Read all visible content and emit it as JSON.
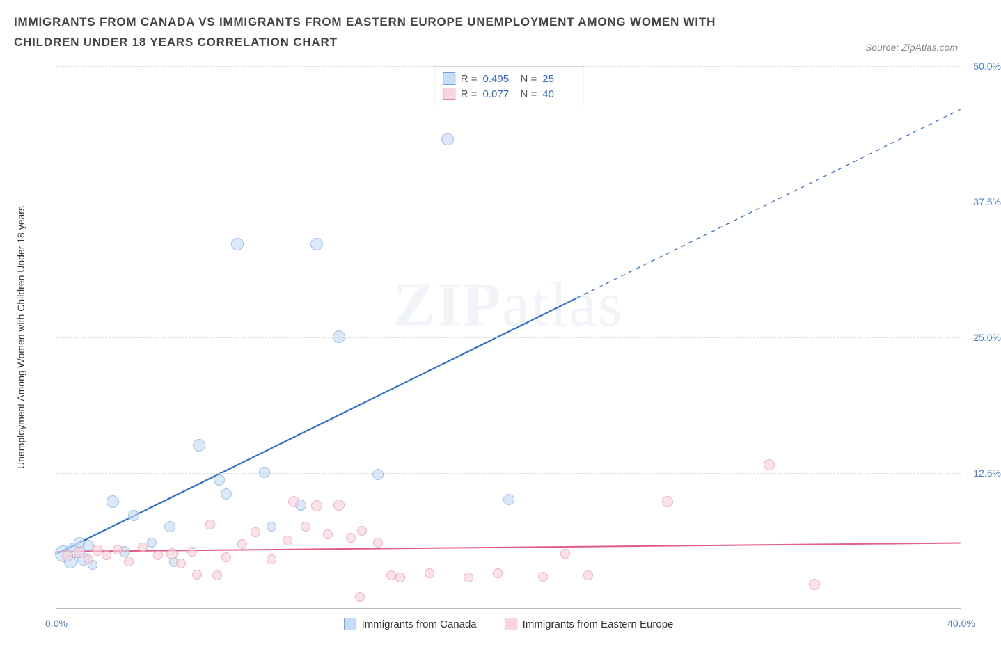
{
  "title": "IMMIGRANTS FROM CANADA VS IMMIGRANTS FROM EASTERN EUROPE UNEMPLOYMENT AMONG WOMEN WITH CHILDREN UNDER 18 YEARS CORRELATION CHART",
  "source_label": "Source: ZipAtlas.com",
  "watermark": {
    "bold": "ZIP",
    "light": "atlas"
  },
  "ylabel": "Unemployment Among Women with Children Under 18 years",
  "chart": {
    "type": "scatter",
    "xlim": [
      0,
      40
    ],
    "ylim": [
      0,
      50
    ],
    "xticks": [
      {
        "v": 0,
        "l": "0.0%"
      },
      {
        "v": 40,
        "l": "40.0%"
      }
    ],
    "yticks": [
      {
        "v": 12.5,
        "l": "12.5%"
      },
      {
        "v": 25,
        "l": "25.0%"
      },
      {
        "v": 37.5,
        "l": "37.5%"
      },
      {
        "v": 50,
        "l": "50.0%"
      }
    ],
    "grid_color": "#dddddd",
    "background_color": "#ffffff",
    "series": [
      {
        "name": "Immigrants from Canada",
        "fill": "#c7ddf5",
        "stroke": "#6ea0e0",
        "opacity": 0.65,
        "r_value": "0.495",
        "n_value": "25",
        "trend": {
          "x1": 0,
          "y1": 5,
          "x2": 40,
          "y2": 46,
          "solid_until_x": 23,
          "color": "#2f6fd0",
          "width": 2.2
        },
        "points": [
          {
            "x": 0.3,
            "y": 5.0,
            "r": 12
          },
          {
            "x": 0.6,
            "y": 4.2,
            "r": 9
          },
          {
            "x": 0.8,
            "y": 5.3,
            "r": 11
          },
          {
            "x": 1.0,
            "y": 6.0,
            "r": 8
          },
          {
            "x": 1.2,
            "y": 4.5,
            "r": 9
          },
          {
            "x": 1.4,
            "y": 5.8,
            "r": 8
          },
          {
            "x": 1.6,
            "y": 4.0,
            "r": 7
          },
          {
            "x": 2.5,
            "y": 9.8,
            "r": 9
          },
          {
            "x": 3.0,
            "y": 5.2,
            "r": 8
          },
          {
            "x": 3.4,
            "y": 8.5,
            "r": 8
          },
          {
            "x": 4.2,
            "y": 6.0,
            "r": 7
          },
          {
            "x": 5.0,
            "y": 7.5,
            "r": 8
          },
          {
            "x": 5.2,
            "y": 4.2,
            "r": 7
          },
          {
            "x": 6.3,
            "y": 15.0,
            "r": 9
          },
          {
            "x": 7.2,
            "y": 11.8,
            "r": 8
          },
          {
            "x": 7.5,
            "y": 10.5,
            "r": 8
          },
          {
            "x": 8.0,
            "y": 33.5,
            "r": 9
          },
          {
            "x": 9.2,
            "y": 12.5,
            "r": 8
          },
          {
            "x": 9.5,
            "y": 7.5,
            "r": 7
          },
          {
            "x": 10.8,
            "y": 9.5,
            "r": 8
          },
          {
            "x": 11.5,
            "y": 33.5,
            "r": 9
          },
          {
            "x": 12.5,
            "y": 25.0,
            "r": 9
          },
          {
            "x": 14.2,
            "y": 12.3,
            "r": 8
          },
          {
            "x": 17.3,
            "y": 43.2,
            "r": 9
          },
          {
            "x": 20.0,
            "y": 10.0,
            "r": 8
          }
        ]
      },
      {
        "name": "Immigrants from Eastern Europe",
        "fill": "#f8d4dc",
        "stroke": "#e889a4",
        "opacity": 0.65,
        "r_value": "0.077",
        "n_value": "40",
        "trend": {
          "x1": 0,
          "y1": 5.2,
          "x2": 40,
          "y2": 6.0,
          "solid_until_x": 40,
          "color": "#e05a8a",
          "width": 2
        },
        "points": [
          {
            "x": 0.5,
            "y": 4.8,
            "r": 8
          },
          {
            "x": 1.0,
            "y": 5.1,
            "r": 8
          },
          {
            "x": 1.4,
            "y": 4.5,
            "r": 7
          },
          {
            "x": 1.8,
            "y": 5.3,
            "r": 8
          },
          {
            "x": 2.2,
            "y": 4.9,
            "r": 7
          },
          {
            "x": 2.7,
            "y": 5.4,
            "r": 7
          },
          {
            "x": 3.2,
            "y": 4.3,
            "r": 7
          },
          {
            "x": 3.8,
            "y": 5.6,
            "r": 7
          },
          {
            "x": 4.5,
            "y": 4.9,
            "r": 7
          },
          {
            "x": 5.1,
            "y": 5.0,
            "r": 8
          },
          {
            "x": 5.5,
            "y": 4.1,
            "r": 7
          },
          {
            "x": 6.0,
            "y": 5.2,
            "r": 7
          },
          {
            "x": 6.2,
            "y": 3.1,
            "r": 7
          },
          {
            "x": 6.8,
            "y": 7.7,
            "r": 7
          },
          {
            "x": 7.1,
            "y": 3.0,
            "r": 7
          },
          {
            "x": 7.5,
            "y": 4.7,
            "r": 7
          },
          {
            "x": 8.2,
            "y": 5.9,
            "r": 7
          },
          {
            "x": 8.8,
            "y": 7.0,
            "r": 7
          },
          {
            "x": 9.5,
            "y": 4.5,
            "r": 7
          },
          {
            "x": 10.2,
            "y": 6.2,
            "r": 7
          },
          {
            "x": 10.5,
            "y": 9.8,
            "r": 8
          },
          {
            "x": 11.0,
            "y": 7.5,
            "r": 7
          },
          {
            "x": 11.5,
            "y": 9.4,
            "r": 8
          },
          {
            "x": 12.0,
            "y": 6.8,
            "r": 7
          },
          {
            "x": 12.5,
            "y": 9.5,
            "r": 8
          },
          {
            "x": 13.0,
            "y": 6.5,
            "r": 7
          },
          {
            "x": 13.4,
            "y": 1.0,
            "r": 7
          },
          {
            "x": 13.5,
            "y": 7.1,
            "r": 7
          },
          {
            "x": 14.2,
            "y": 6.0,
            "r": 7
          },
          {
            "x": 14.8,
            "y": 3.0,
            "r": 7
          },
          {
            "x": 15.2,
            "y": 2.8,
            "r": 7
          },
          {
            "x": 16.5,
            "y": 3.2,
            "r": 7
          },
          {
            "x": 18.2,
            "y": 2.8,
            "r": 7
          },
          {
            "x": 19.5,
            "y": 3.2,
            "r": 7
          },
          {
            "x": 21.5,
            "y": 2.9,
            "r": 7
          },
          {
            "x": 22.5,
            "y": 5.0,
            "r": 7
          },
          {
            "x": 23.5,
            "y": 3.0,
            "r": 7
          },
          {
            "x": 27.0,
            "y": 9.8,
            "r": 8
          },
          {
            "x": 31.5,
            "y": 13.2,
            "r": 8
          },
          {
            "x": 33.5,
            "y": 2.2,
            "r": 8
          }
        ]
      }
    ]
  },
  "legend_labels": {
    "r": "R =",
    "n": "N ="
  }
}
